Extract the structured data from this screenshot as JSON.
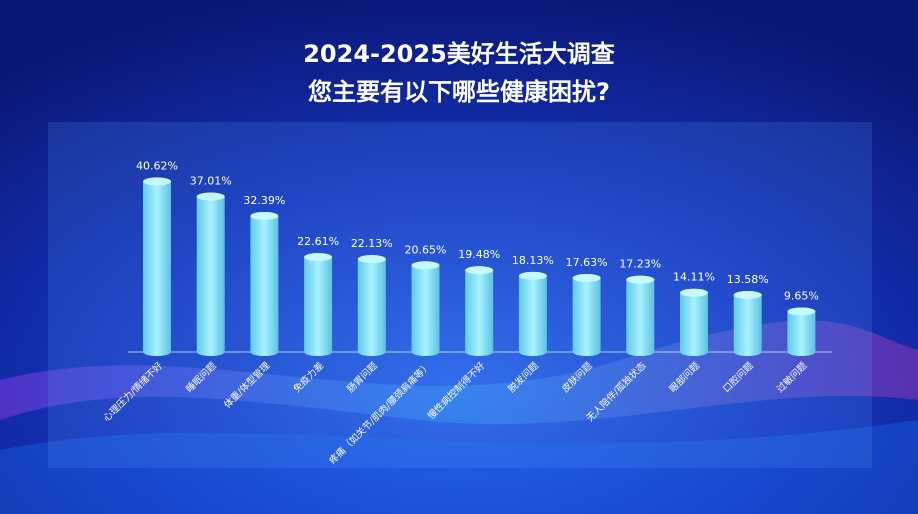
{
  "chart_data": {
    "type": "bar",
    "title": "2024-2025美好生活大调查",
    "subtitle": "您主要有以下哪些健康困扰?",
    "categories": [
      "心理压力/情绪不好",
      "睡眠问题",
      "体重/体型管理",
      "免疫力差",
      "肠胃问题",
      "疼痛（如关节/肌肉/腰颈肩痛等）",
      "慢性病控制得不好",
      "脱发问题",
      "皮肤问题",
      "无人陪伴/孤独状态",
      "眼部问题",
      "口腔问题",
      "过敏问题"
    ],
    "values": [
      40.62,
      37.01,
      32.39,
      22.61,
      22.13,
      20.65,
      19.48,
      18.13,
      17.63,
      17.23,
      14.11,
      13.58,
      9.65
    ],
    "value_labels": [
      "40.62%",
      "37.01%",
      "32.39%",
      "22.61%",
      "22.13%",
      "20.65%",
      "19.48%",
      "18.13%",
      "17.63%",
      "17.23%",
      "14.11%",
      "13.58%",
      "9.65%"
    ],
    "color": "#7fe3f5"
  }
}
